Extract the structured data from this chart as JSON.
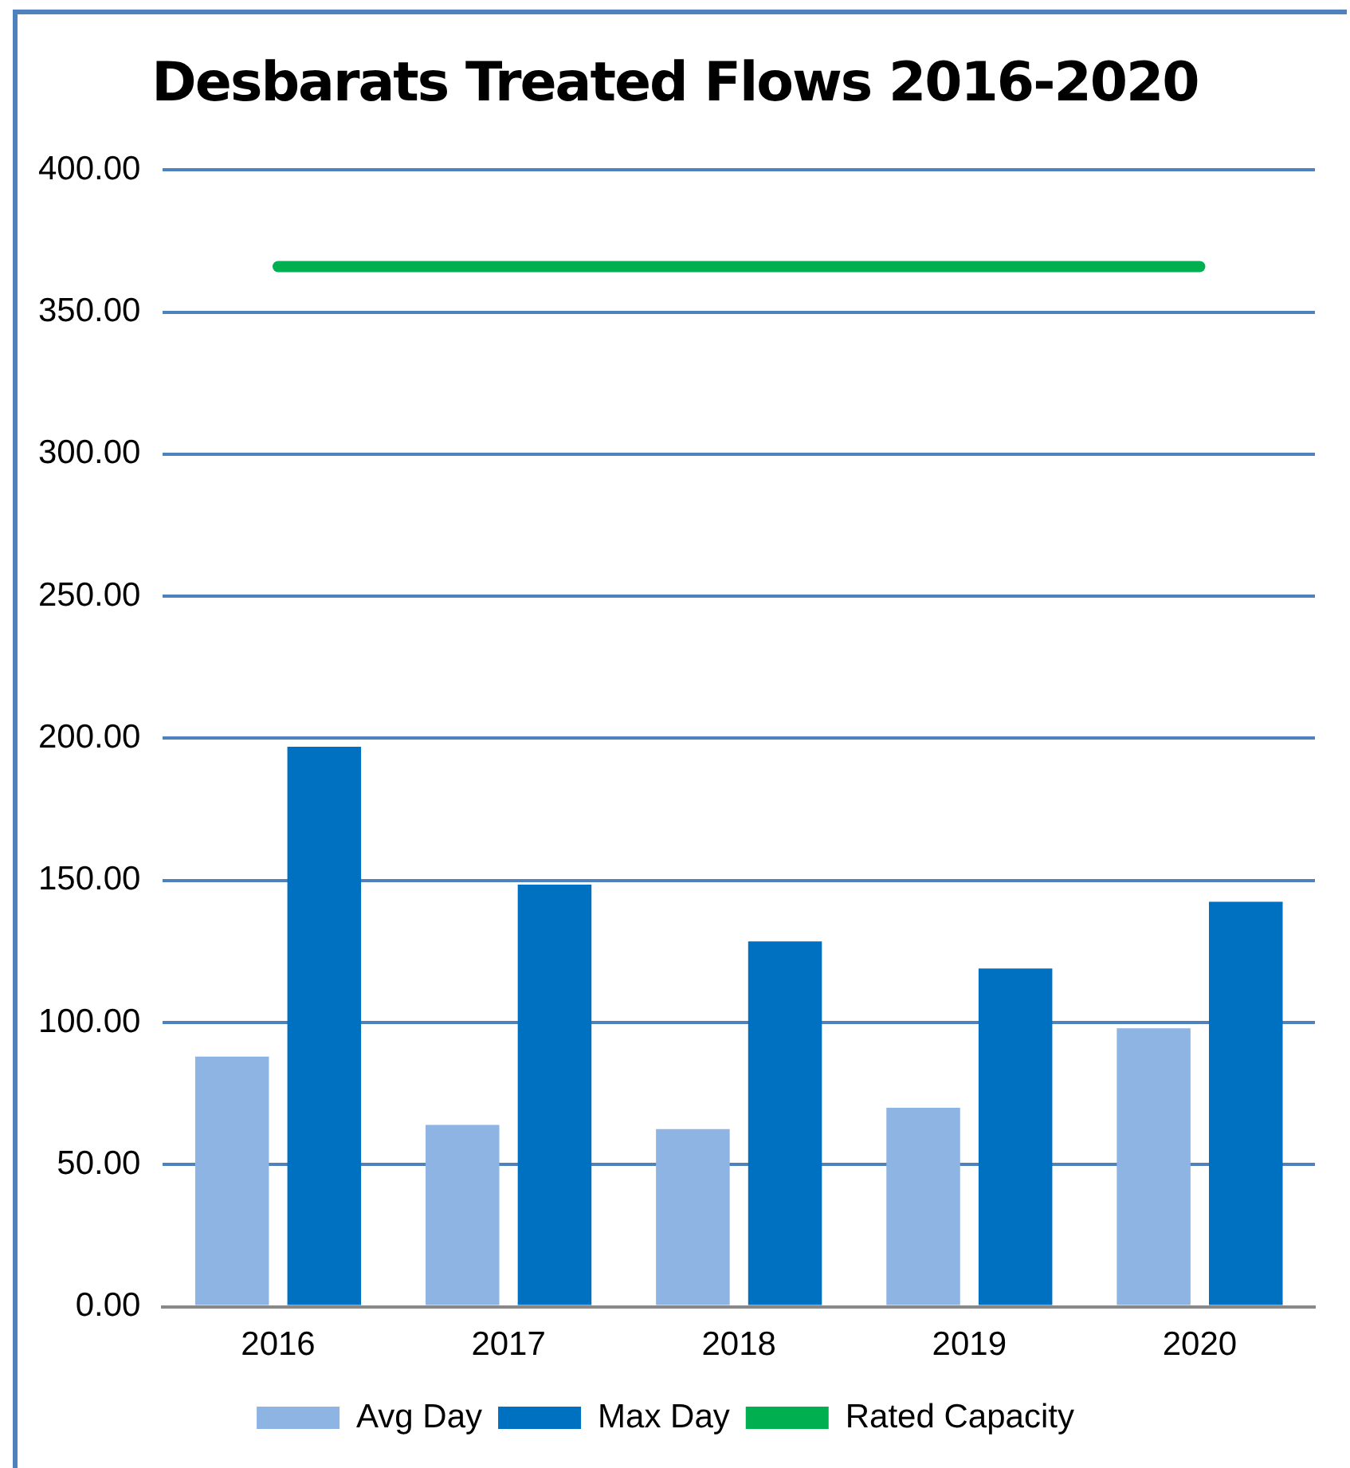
{
  "chart_data": {
    "type": "bar",
    "title": "Desbarats Treated Flows 2016-2020",
    "categories": [
      "2016",
      "2017",
      "2018",
      "2019",
      "2020"
    ],
    "series": [
      {
        "name": "Avg Day",
        "color": "#8eb4e3",
        "values": [
          88,
          64,
          62.5,
          70,
          98
        ]
      },
      {
        "name": "Max Day",
        "color": "#0070c0",
        "values": [
          197,
          148.5,
          128.5,
          119,
          142.5
        ]
      },
      {
        "name": "Rated Capacity",
        "type": "line",
        "color": "#00b050",
        "values": [
          366,
          366,
          366,
          366,
          366
        ]
      }
    ],
    "ylim": [
      0,
      400
    ],
    "yticks": [
      {
        "value": 0,
        "label": "0.00"
      },
      {
        "value": 50,
        "label": "50.00"
      },
      {
        "value": 100,
        "label": "100.00"
      },
      {
        "value": 150,
        "label": "150.00"
      },
      {
        "value": 200,
        "label": "200.00"
      },
      {
        "value": 250,
        "label": "250.00"
      },
      {
        "value": 300,
        "label": "300.00"
      },
      {
        "value": 350,
        "label": "350.00"
      },
      {
        "value": 400,
        "label": "400.00"
      }
    ],
    "grid": "y",
    "legend": "bottom",
    "marker": "none"
  }
}
